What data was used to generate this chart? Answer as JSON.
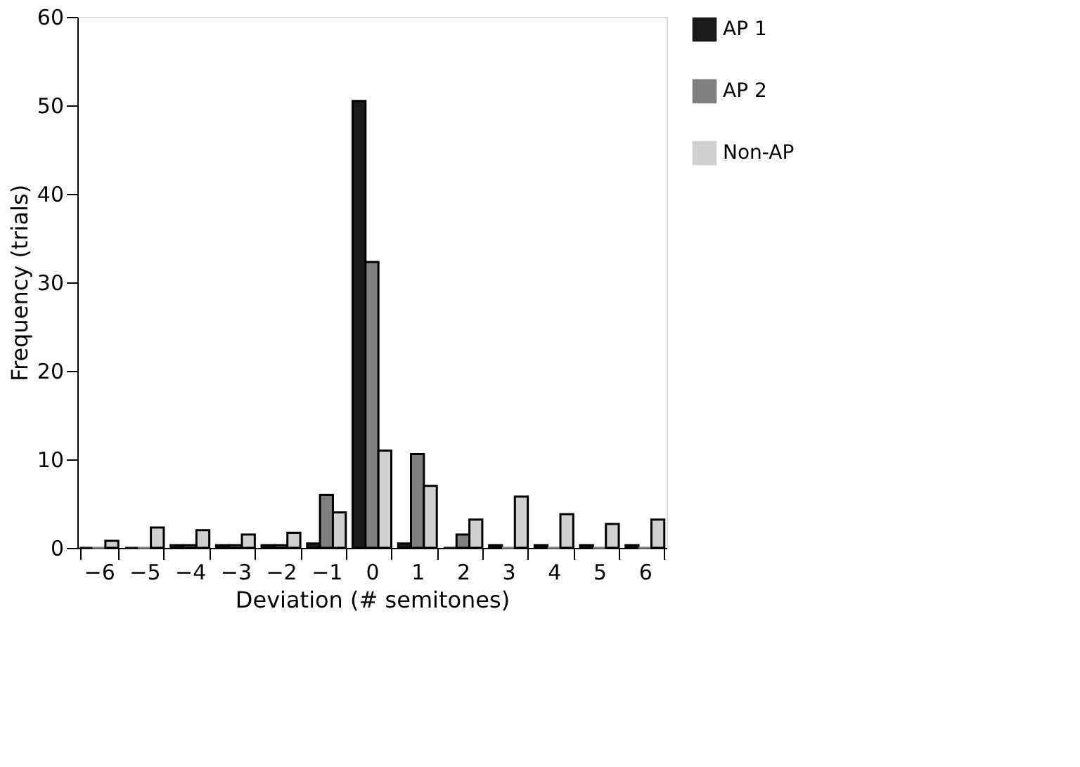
{
  "chart_data": {
    "type": "bar",
    "xlabel": "Deviation (# semitones)",
    "ylabel": "Frequency (trials)",
    "categories": [
      "−6",
      "−5",
      "−4",
      "−3",
      "−2",
      "−1",
      "0",
      "1",
      "2",
      "3",
      "4",
      "5",
      "6"
    ],
    "series": [
      {
        "name": "AP 1",
        "color": "#1a1a1a",
        "values": [
          0,
          0,
          0.3,
          0.3,
          0.3,
          0.5,
          50.5,
          0.5,
          0,
          0.3,
          0.3,
          0.3,
          0.3
        ]
      },
      {
        "name": "AP 2",
        "color": "#808080",
        "values": [
          0,
          0,
          0.3,
          0.3,
          0.3,
          6,
          32.3,
          10.6,
          1.5,
          0,
          0,
          0,
          0
        ]
      },
      {
        "name": "Non-AP",
        "color": "#d0d0d0",
        "values": [
          0.8,
          2.3,
          2,
          1.5,
          1.7,
          4,
          11,
          7,
          3.2,
          5.8,
          3.8,
          2.7,
          3.2
        ]
      }
    ],
    "ylim": [
      0,
      60
    ],
    "yticks": [
      0,
      10,
      20,
      30,
      40,
      50,
      60
    ],
    "grid": false,
    "legend": "top right"
  }
}
